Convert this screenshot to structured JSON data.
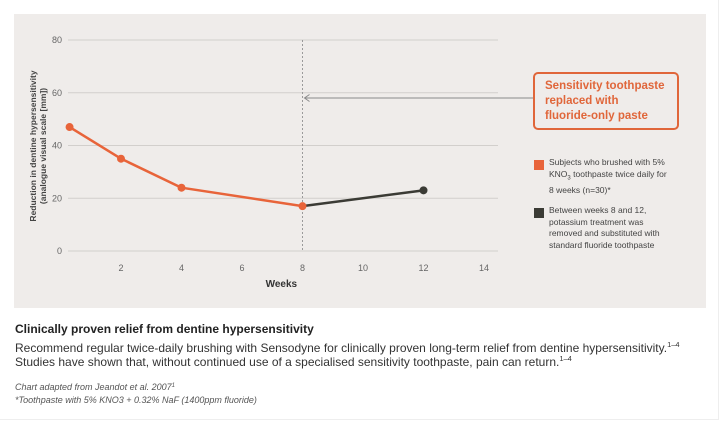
{
  "chart_data": {
    "type": "line",
    "title": "",
    "xlabel": "Weeks",
    "ylabel": [
      "Reduction in dentine hypersensitivity",
      "(analogue visual scale [mm])"
    ],
    "xlim": [
      0,
      14
    ],
    "ylim": [
      0,
      80
    ],
    "x_ticks": [
      2,
      4,
      6,
      8,
      10,
      12,
      14
    ],
    "y_ticks": [
      0,
      20,
      40,
      60,
      80
    ],
    "grid": "horizontal",
    "series": [
      {
        "name": "Subjects who brushed with 5% KNO3 toothpaste twice daily for 8 weeks (n=30)*",
        "color": "#e8643a",
        "points": [
          {
            "x": 0.3,
            "y": 47
          },
          {
            "x": 2,
            "y": 35
          },
          {
            "x": 4,
            "y": 24
          },
          {
            "x": 8,
            "y": 17
          }
        ]
      },
      {
        "name": "Between weeks 8 and 12, potassium treatment was removed and substituted with standard fluoride toothpaste",
        "color": "#3b3b35",
        "points": [
          {
            "x": 8,
            "y": 17
          },
          {
            "x": 12,
            "y": 23
          }
        ]
      }
    ],
    "annotations": [
      {
        "type": "vertical-dashed-line",
        "x": 8
      },
      {
        "type": "arrow-callout",
        "target_x": 8,
        "y": 58,
        "text": "Sensitivity toothpaste replaced with fluoride-only paste"
      }
    ],
    "legend_position": "right"
  },
  "callout": {
    "lines": [
      "Sensitivity toothpaste",
      "replaced with",
      "fluoride-only paste"
    ],
    "color": "#e0663a"
  },
  "legend": {
    "items": [
      {
        "color": "#e8643a",
        "lines": [
          "Subjects who brushed with 5%",
          "toothpaste twice daily for",
          "8 weeks (n=30)*"
        ],
        "chem": "KNO",
        "chem_sub": "3"
      },
      {
        "color": "#3b3b35",
        "lines": [
          "Between weeks 8 and 12,",
          "potassium treatment was",
          "removed and substituted with",
          "standard fluoride toothpaste"
        ]
      }
    ]
  },
  "caption": {
    "title": "Clinically proven relief from dentine hypersensitivity",
    "body_part1": "Recommend regular twice-daily brushing with Sensodyne for clinically proven long-term relief from dentine hypersensitivity.",
    "ref1": "1–4",
    "body_part2": " Studies have shown that, without continued use of a specialised sensitivity toothpaste, pain can return.",
    "ref2": "1–4"
  },
  "notes": {
    "source": "Chart adapted from Jeandot et al. 2007",
    "source_ref": "1",
    "footnote": "*Toothpaste with 5% KNO3 + 0.32% NaF (1400ppm fluoride)"
  }
}
